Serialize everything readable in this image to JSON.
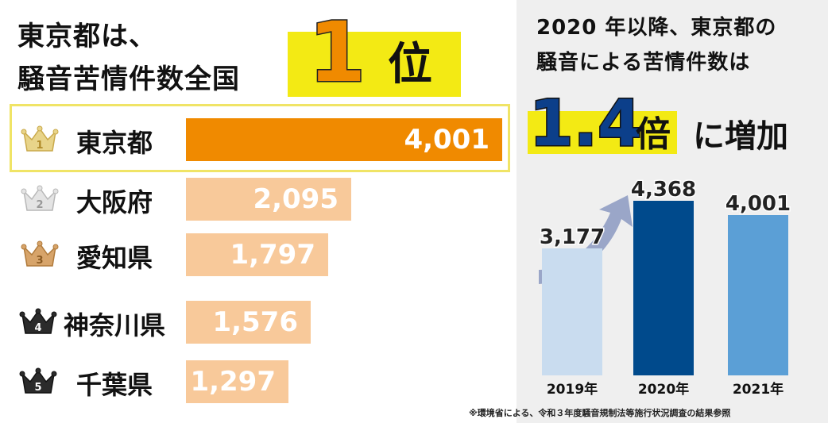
{
  "left": {
    "title_line1": "東京都は、",
    "title_line2": "騒音苦情件数全国",
    "badge_num": "1",
    "badge_unit": "位"
  },
  "ranking": {
    "items": [
      {
        "rank": "1",
        "name": "東京都",
        "value_label": "4,001"
      },
      {
        "rank": "2",
        "name": "大阪府",
        "value_label": "2,095"
      },
      {
        "rank": "3",
        "name": "愛知県",
        "value_label": "1,797"
      },
      {
        "rank": "4",
        "name": "神奈川県",
        "value_label": "1,576"
      },
      {
        "rank": "5",
        "name": "千葉県",
        "value_label": "1,297"
      }
    ]
  },
  "right": {
    "title_line1": "2020 年以降、東京都の",
    "title_line2": "騒音による苦情件数は",
    "ratio_value": "1.4",
    "ratio_unit": "倍",
    "ratio_suffix": "に増加",
    "note": "※環境省による、令和３年度騒音規制法等施行状況調査の結果参照"
  },
  "colors": {
    "rank1_bar": "#f08a00",
    "other_bar": "#f8c99a",
    "yellow": "#f3ea14",
    "bar2019": "#c9dcef",
    "bar2020": "#004a8c",
    "bar2021": "#5b9fd6",
    "arrow": "#9aa6c8",
    "ratio_text": "#0c3f8a"
  },
  "chart_data": [
    {
      "type": "bar",
      "orientation": "horizontal",
      "categories": [
        "東京都",
        "大阪府",
        "愛知県",
        "神奈川県",
        "千葉県"
      ],
      "values": [
        4001,
        2095,
        1797,
        1576,
        1297
      ]
    },
    {
      "type": "bar",
      "categories": [
        "2019年",
        "2020年",
        "2021年"
      ],
      "values": [
        3177,
        4368,
        4001
      ],
      "value_labels": [
        "3,177",
        "4,368",
        "4,001"
      ]
    }
  ]
}
